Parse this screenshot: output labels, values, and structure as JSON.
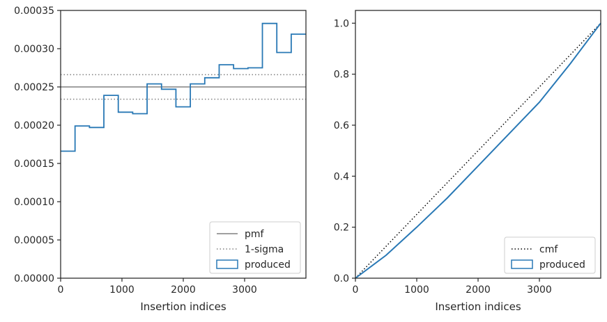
{
  "colors": {
    "produced": "#2878b5",
    "pmf": "#808080",
    "sigma": "#808080",
    "cmf": "#000000",
    "axis": "#262626"
  },
  "chart_data": [
    {
      "type": "histogram",
      "xlabel": "Insertion indices",
      "ylabel": "",
      "xlim": [
        0,
        4000
      ],
      "ylim": [
        0,
        0.00035
      ],
      "x_ticks": [
        {
          "value": 0,
          "label": "0"
        },
        {
          "value": 1000,
          "label": "1000"
        },
        {
          "value": 2000,
          "label": "2000"
        },
        {
          "value": 3000,
          "label": "3000"
        }
      ],
      "y_ticks": [
        {
          "value": 0,
          "label": "0.00000"
        },
        {
          "value": 5e-05,
          "label": "0.00005"
        },
        {
          "value": 0.0001,
          "label": "0.00010"
        },
        {
          "value": 0.00015,
          "label": "0.00015"
        },
        {
          "value": 0.0002,
          "label": "0.00020"
        },
        {
          "value": 0.00025,
          "label": "0.00025"
        },
        {
          "value": 0.0003,
          "label": "0.00030"
        },
        {
          "value": 0.00035,
          "label": "0.00035"
        }
      ],
      "bin_edges": [
        0,
        235,
        470,
        705,
        940,
        1175,
        1410,
        1645,
        1880,
        2115,
        2350,
        2585,
        2820,
        3055,
        3290,
        3525,
        3760,
        4000
      ],
      "values": [
        0.000166,
        0.000199,
        0.000197,
        0.000239,
        0.000217,
        0.000215,
        0.000254,
        0.000247,
        0.000224,
        0.000254,
        0.000262,
        0.000279,
        0.000274,
        0.000275,
        0.000333,
        0.000295,
        0.000319
      ],
      "pmf": 0.00025,
      "sigma_band": [
        0.000234,
        0.000266
      ],
      "legend": {
        "position": "lower right",
        "entries": [
          "pmf",
          "1-sigma",
          "produced"
        ]
      }
    },
    {
      "type": "line",
      "xlabel": "Insertion indices",
      "ylabel": "",
      "xlim": [
        0,
        4000
      ],
      "ylim": [
        0,
        1.05
      ],
      "x_ticks": [
        {
          "value": 0,
          "label": "0"
        },
        {
          "value": 1000,
          "label": "1000"
        },
        {
          "value": 2000,
          "label": "2000"
        },
        {
          "value": 3000,
          "label": "3000"
        }
      ],
      "y_ticks": [
        {
          "value": 0,
          "label": "0.0"
        },
        {
          "value": 0.2,
          "label": "0.2"
        },
        {
          "value": 0.4,
          "label": "0.4"
        },
        {
          "value": 0.6,
          "label": "0.6"
        },
        {
          "value": 0.8,
          "label": "0.8"
        },
        {
          "value": 1.0,
          "label": "1.0"
        }
      ],
      "series": [
        {
          "name": "cmf",
          "style": "dotted",
          "x": [
            0,
            4000
          ],
          "y": [
            0,
            1.0
          ]
        },
        {
          "name": "produced",
          "style": "solid",
          "x": [
            0,
            500,
            1000,
            1500,
            2000,
            2500,
            3000,
            3500,
            4000
          ],
          "y": [
            0,
            0.09,
            0.2,
            0.315,
            0.44,
            0.565,
            0.69,
            0.84,
            1.0
          ]
        }
      ],
      "legend": {
        "position": "lower right",
        "entries": [
          "cmf",
          "produced"
        ]
      }
    }
  ]
}
